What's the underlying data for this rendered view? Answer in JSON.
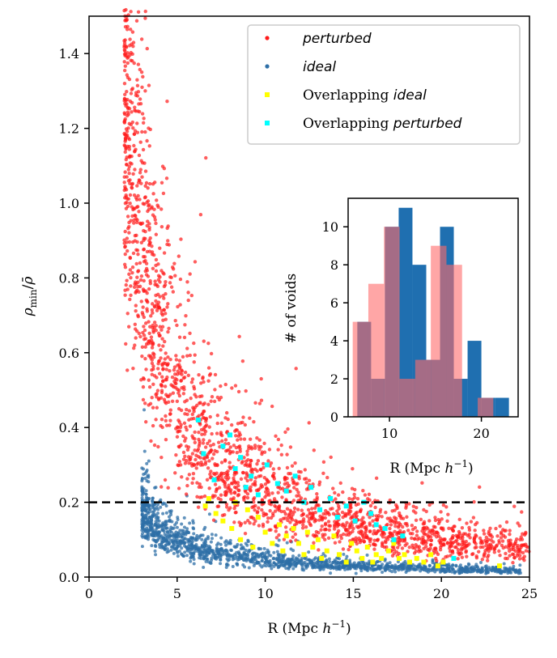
{
  "colors": {
    "perturbed": "#ff1a1a",
    "ideal": "#2e6fa7",
    "overlap_ideal": "#ffff00",
    "overlap_perturbed": "#00ffff",
    "hist_ideal": "#1f6fb0",
    "hist_perturbed": "#ff6a6a",
    "threshold": "#000000"
  },
  "chart_data": [
    {
      "type": "scatter",
      "xlabel": "R (Mpc h⁻¹)",
      "ylabel": "ρmin/ρ̄",
      "xlim": [
        0,
        25
      ],
      "ylim": [
        0,
        1.5
      ],
      "xticks": [
        "0",
        "5",
        "10",
        "15",
        "20",
        "25"
      ],
      "yticks": [
        "0.0",
        "0.2",
        "0.4",
        "0.6",
        "0.8",
        "1.0",
        "1.2",
        "1.4"
      ],
      "threshold_y": 0.2,
      "legend_position": "top-right",
      "legend": [
        {
          "label": "perturbed",
          "style": "italic",
          "series": "perturbed"
        },
        {
          "label": "ideal",
          "style": "italic",
          "series": "ideal"
        },
        {
          "prefix": "Overlapping ",
          "label": "ideal",
          "style": "italic",
          "series": "overlap_ideal"
        },
        {
          "prefix": "Overlapping ",
          "label": "perturbed",
          "style": "italic",
          "series": "overlap_perturbed"
        }
      ],
      "series": [
        {
          "name": "ideal",
          "count": 1500,
          "r_range": [
            3.0,
            24.5
          ],
          "trend": "rho ~ 0.6/R^1.1",
          "note": "scatter cloud, lower envelope"
        },
        {
          "name": "perturbed",
          "count": 2200,
          "r_range": [
            2.0,
            25.0
          ],
          "trend": "rho ~ 3.2/R^1.15",
          "note": "scatter cloud, upper envelope"
        },
        {
          "name": "overlap_ideal",
          "x": [
            6.6,
            6.8,
            7.2,
            7.6,
            8.1,
            8.3,
            8.6,
            9.0,
            9.3,
            9.6,
            10.0,
            10.4,
            10.8,
            11.0,
            11.2,
            11.6,
            11.9,
            12.2,
            12.4,
            12.7,
            13.0,
            13.2,
            13.5,
            13.9,
            14.2,
            14.6,
            14.9,
            15.2,
            15.5,
            15.8,
            16.1,
            16.3,
            16.6,
            17.0,
            17.3,
            17.6,
            17.9,
            18.2,
            18.6,
            19.0,
            19.4,
            19.8,
            20.1,
            23.3
          ],
          "y": [
            0.19,
            0.21,
            0.17,
            0.15,
            0.13,
            0.2,
            0.1,
            0.18,
            0.08,
            0.16,
            0.12,
            0.09,
            0.14,
            0.07,
            0.11,
            0.13,
            0.09,
            0.06,
            0.12,
            0.08,
            0.1,
            0.05,
            0.07,
            0.11,
            0.06,
            0.04,
            0.09,
            0.07,
            0.05,
            0.08,
            0.04,
            0.06,
            0.05,
            0.07,
            0.09,
            0.05,
            0.06,
            0.04,
            0.05,
            0.04,
            0.06,
            0.03,
            0.04,
            0.03
          ]
        },
        {
          "name": "overlap_perturbed",
          "x": [
            6.2,
            6.5,
            7.1,
            7.6,
            8.0,
            8.3,
            8.6,
            8.9,
            9.2,
            9.6,
            10.1,
            10.7,
            11.2,
            11.7,
            12.2,
            12.6,
            13.1,
            13.7,
            14.1,
            14.6,
            15.1,
            15.6,
            16.0,
            16.3,
            16.8,
            17.3,
            17.8,
            20.7
          ],
          "y": [
            0.42,
            0.33,
            0.26,
            0.35,
            0.38,
            0.29,
            0.32,
            0.24,
            0.27,
            0.22,
            0.3,
            0.25,
            0.23,
            0.27,
            0.2,
            0.24,
            0.18,
            0.21,
            0.16,
            0.19,
            0.15,
            0.2,
            0.17,
            0.14,
            0.13,
            0.1,
            0.11,
            0.05
          ]
        }
      ]
    },
    {
      "type": "bar",
      "subtype": "histogram",
      "xlabel": "R (Mpc h⁻¹)",
      "ylabel": "# of voids",
      "xlim": [
        5.5,
        24
      ],
      "ylim": [
        0,
        11.5
      ],
      "xticks": [
        "10",
        "20"
      ],
      "yticks": [
        "0",
        "2",
        "4",
        "6",
        "8",
        "10"
      ],
      "series": [
        {
          "name": "ideal",
          "bin_edges": [
            6.5,
            8.0,
            9.5,
            11.0,
            12.5,
            14.0,
            15.5,
            17.0,
            18.5,
            20.0,
            21.5,
            23.0
          ],
          "values": [
            5,
            2,
            10,
            11,
            8,
            3,
            10,
            2,
            4,
            1,
            1
          ]
        },
        {
          "name": "perturbed",
          "bin_edges": [
            6.0,
            7.7,
            9.4,
            11.1,
            12.8,
            14.5,
            16.2,
            17.9,
            19.6,
            21.3
          ],
          "values": [
            5,
            7,
            10,
            2,
            3,
            9,
            8,
            0,
            1
          ]
        }
      ]
    }
  ]
}
